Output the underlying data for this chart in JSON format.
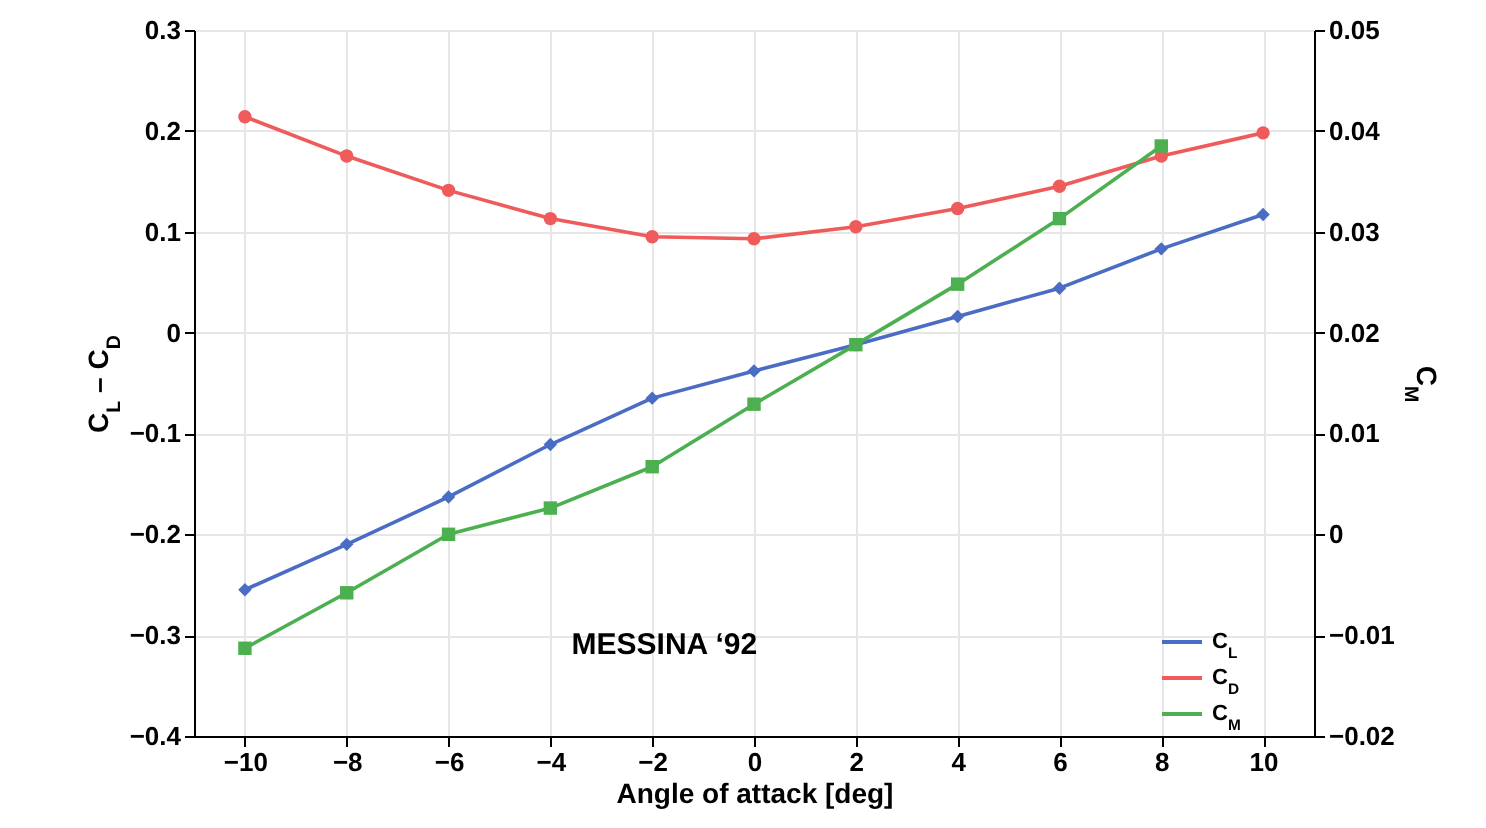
{
  "chart_data": {
    "type": "line",
    "xlabel": "Angle of attack [deg]",
    "ylabel": "C$_{L}$ – C$_{D}$",
    "y2label": "C$_{M}$",
    "x": [
      -10,
      -8,
      -6,
      -4,
      -2,
      0,
      2,
      4,
      6,
      8,
      10
    ],
    "series": [
      {
        "name": "C$_{L}$",
        "color": "#4a6cc4",
        "marker": "diamond",
        "values": [
          -0.255,
          -0.21,
          -0.163,
          -0.111,
          -0.065,
          -0.038,
          -0.012,
          0.016,
          0.044,
          0.083,
          0.117
        ]
      },
      {
        "name": "C$_{D}$",
        "color": "#ef5b5b",
        "marker": "circle",
        "values": [
          0.214,
          0.175,
          0.141,
          0.113,
          0.095,
          0.093,
          0.105,
          0.123,
          0.145,
          0.175,
          0.198
        ]
      },
      {
        "name": "C$_{M}$",
        "color": "#4caf50",
        "marker": "square",
        "axis": "y2",
        "x": [
          -10,
          -8,
          -6,
          -4,
          -2,
          0,
          2,
          4,
          6,
          8
        ],
        "values": [
          -0.0113,
          -0.0058,
          0.0,
          0.0026,
          0.0067,
          0.0129,
          0.0188,
          0.0248,
          0.0313,
          0.0385
        ]
      }
    ],
    "xlim": [
      -11,
      11
    ],
    "xticks": [
      -10,
      -8,
      -6,
      -4,
      -2,
      0,
      2,
      4,
      6,
      8,
      10
    ],
    "ylim": [
      -0.4,
      0.3
    ],
    "yticks": [
      -0.4,
      -0.3,
      -0.2,
      -0.1,
      0,
      0.1,
      0.2,
      0.3
    ],
    "y2lim": [
      -0.02,
      0.05
    ],
    "y2ticks": [
      -0.02,
      -0.01,
      0,
      0.01,
      0.02,
      0.03,
      0.04,
      0.05
    ],
    "annotations": [
      "MESSINA ‘92"
    ],
    "grid": true,
    "legend": "bottom right"
  }
}
